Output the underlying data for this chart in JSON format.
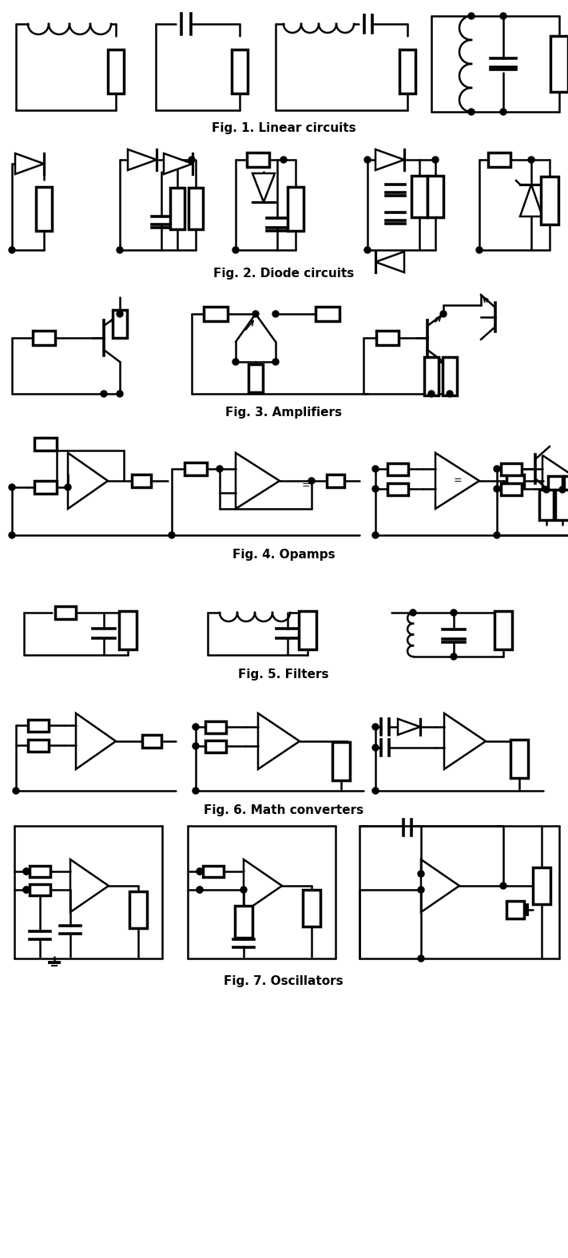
{
  "fig_labels": [
    "Fig. 1. Linear circuits",
    "Fig. 2. Diode circuits",
    "Fig. 3. Amplifiers",
    "Fig. 4. Opamps",
    "Fig. 5. Filters",
    "Fig. 6. Math converters",
    "Fig. 7. Oscillators"
  ],
  "bg": "#ffffff",
  "lw": 1.8
}
